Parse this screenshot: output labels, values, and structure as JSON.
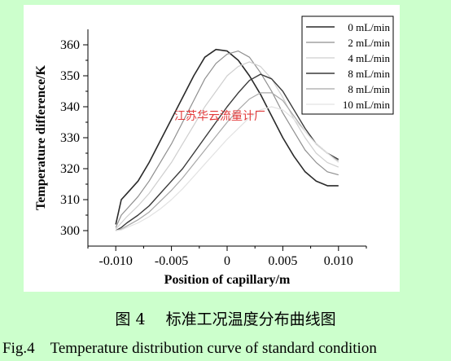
{
  "chart_data": {
    "type": "line",
    "xlabel": "Position of capillary/m",
    "ylabel": "Temperature difference/K",
    "xlim": [
      -0.0125,
      0.0125
    ],
    "ylim": [
      295,
      365
    ],
    "xticks": [
      -0.01,
      -0.005,
      0.0,
      0.005,
      0.01
    ],
    "xtick_labels": [
      "-0.010",
      "-0.005",
      "0",
      "0.005",
      "0.010"
    ],
    "yticks": [
      300,
      310,
      320,
      330,
      340,
      350,
      360
    ],
    "ytick_labels": [
      "300",
      "310",
      "320",
      "330",
      "340",
      "350",
      "360"
    ],
    "legend_position": "top-right",
    "grid": false,
    "series": [
      {
        "name": "0 mL/min",
        "color": "#2a2a2a",
        "width": 1.6,
        "x": [
          -0.01,
          -0.0095,
          -0.009,
          -0.008,
          -0.007,
          -0.006,
          -0.005,
          -0.004,
          -0.003,
          -0.002,
          -0.001,
          0.0,
          0.001,
          0.002,
          0.003,
          0.004,
          0.005,
          0.006,
          0.007,
          0.008,
          0.009,
          0.01
        ],
        "y": [
          302,
          310,
          312,
          316,
          322,
          329,
          336,
          343,
          350,
          356,
          358.5,
          358,
          355,
          350,
          344,
          337,
          330,
          324,
          319,
          316,
          314.5,
          314.5
        ]
      },
      {
        "name": "2 mL/min",
        "color": "#8f8f8f",
        "width": 1.2,
        "x": [
          -0.01,
          -0.0095,
          -0.009,
          -0.008,
          -0.007,
          -0.006,
          -0.005,
          -0.004,
          -0.003,
          -0.002,
          -0.001,
          0.0,
          0.001,
          0.002,
          0.003,
          0.004,
          0.005,
          0.006,
          0.007,
          0.008,
          0.009,
          0.01
        ],
        "y": [
          301,
          305,
          307,
          311,
          316,
          322,
          328,
          335,
          342,
          349,
          354,
          357,
          358,
          356,
          351,
          345,
          338,
          332,
          326,
          322,
          319,
          318
        ]
      },
      {
        "name": "4 mL/min",
        "color": "#cfcfcf",
        "width": 1.2,
        "x": [
          -0.01,
          -0.0095,
          -0.009,
          -0.008,
          -0.007,
          -0.006,
          -0.005,
          -0.004,
          -0.003,
          -0.002,
          -0.001,
          0.0,
          0.001,
          0.002,
          0.003,
          0.004,
          0.005,
          0.006,
          0.007,
          0.008,
          0.009,
          0.01
        ],
        "y": [
          300.5,
          302.5,
          304.5,
          308,
          312,
          317,
          322,
          328,
          334,
          340,
          345,
          350,
          353,
          354.5,
          353,
          349,
          343,
          336,
          330,
          325,
          322,
          320.5
        ]
      },
      {
        "name": "8 mL/min",
        "color": "#3a3a3a",
        "width": 1.4,
        "x": [
          -0.01,
          -0.0095,
          -0.009,
          -0.008,
          -0.007,
          -0.006,
          -0.005,
          -0.004,
          -0.003,
          -0.002,
          -0.001,
          0.0,
          0.001,
          0.002,
          0.003,
          0.004,
          0.005,
          0.006,
          0.007,
          0.008,
          0.009,
          0.01
        ],
        "y": [
          300,
          301,
          302.5,
          305,
          308,
          312,
          316,
          320,
          325,
          330,
          335,
          340,
          344.5,
          348.5,
          350.5,
          349,
          345,
          339,
          333,
          328,
          325,
          323
        ]
      },
      {
        "name": "8 mL/min",
        "color": "#a8a8a8",
        "width": 1.2,
        "x": [
          -0.01,
          -0.0095,
          -0.009,
          -0.008,
          -0.007,
          -0.006,
          -0.005,
          -0.004,
          -0.003,
          -0.002,
          -0.001,
          0.0,
          0.001,
          0.002,
          0.003,
          0.004,
          0.005,
          0.006,
          0.007,
          0.008,
          0.009,
          0.01
        ],
        "y": [
          300,
          300.5,
          301.5,
          303.5,
          306,
          309.5,
          313,
          317,
          321.5,
          326,
          330.5,
          335,
          339,
          342.5,
          344.5,
          344.5,
          342,
          337,
          332,
          328,
          325,
          322.5
        ]
      },
      {
        "name": "10 mL/min",
        "color": "#e2e2e2",
        "width": 1.2,
        "x": [
          -0.01,
          -0.0095,
          -0.009,
          -0.008,
          -0.007,
          -0.006,
          -0.005,
          -0.004,
          -0.003,
          -0.002,
          -0.001,
          0.0,
          0.001,
          0.002,
          0.003,
          0.004,
          0.005,
          0.006,
          0.007,
          0.008,
          0.009,
          0.01
        ],
        "y": [
          300,
          300.2,
          301,
          302.5,
          304.5,
          307,
          310,
          313.5,
          317.5,
          321.5,
          325.5,
          329.5,
          333,
          336.5,
          339,
          340,
          339,
          336,
          332,
          328,
          325,
          322
        ]
      }
    ]
  },
  "watermark_text": "江苏华云流量计厂",
  "caption_cn": "图 4　 标准工况温度分布曲线图",
  "caption_en": "Fig.4　Temperature distribution curve of standard condition"
}
